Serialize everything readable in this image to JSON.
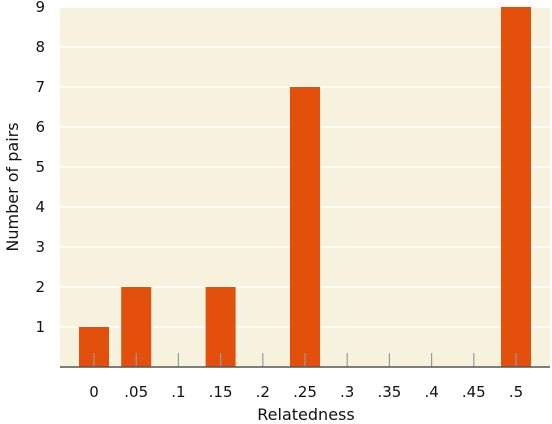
{
  "chart_data": {
    "type": "bar",
    "title": "",
    "xlabel": "Relatedness",
    "ylabel": "Number of pairs",
    "categories": [
      "0",
      ".05",
      ".1",
      ".15",
      ".2",
      ".25",
      ".3",
      ".35",
      ".4",
      ".45",
      ".5"
    ],
    "values": [
      1,
      2,
      0,
      2,
      0,
      7,
      0,
      0,
      0,
      0,
      9
    ],
    "ylim": [
      0,
      9
    ],
    "yticks": [
      1,
      2,
      3,
      4,
      5,
      6,
      7,
      8,
      9
    ],
    "grid": true,
    "colors": {
      "plot_background": "#f6f2de",
      "bar": "#e2500c",
      "grid": "#ffffff",
      "axis": "#555555"
    }
  }
}
